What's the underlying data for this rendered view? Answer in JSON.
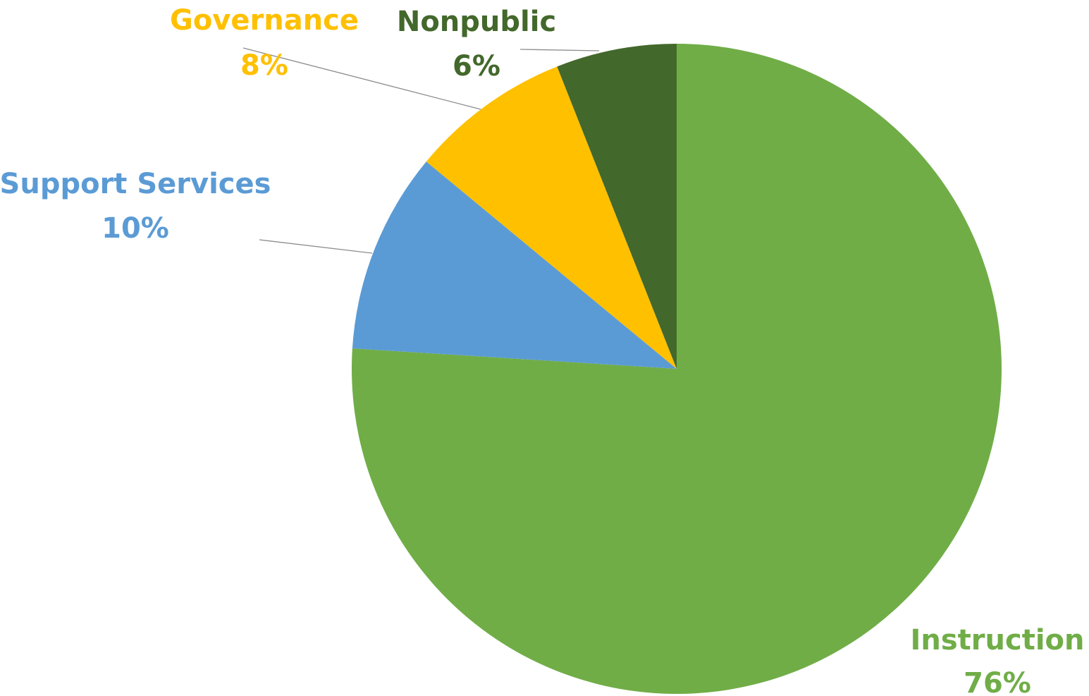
{
  "chart_data": {
    "type": "pie",
    "title": "",
    "start_angle_deg": 0,
    "direction": "clockwise",
    "slices": [
      {
        "label": "Instruction",
        "percent_label": "76%",
        "value": 76,
        "color": "#70AD47"
      },
      {
        "label": "Support Services",
        "percent_label": "10%",
        "value": 10,
        "color": "#5B9BD5"
      },
      {
        "label": "Governance",
        "percent_label": "8%",
        "value": 8,
        "color": "#FFC000"
      },
      {
        "label": "Nonpublic",
        "percent_label": "6%",
        "value": 6,
        "color": "#43682B"
      }
    ],
    "legend": "none",
    "data_labels": "outside with leader lines"
  }
}
